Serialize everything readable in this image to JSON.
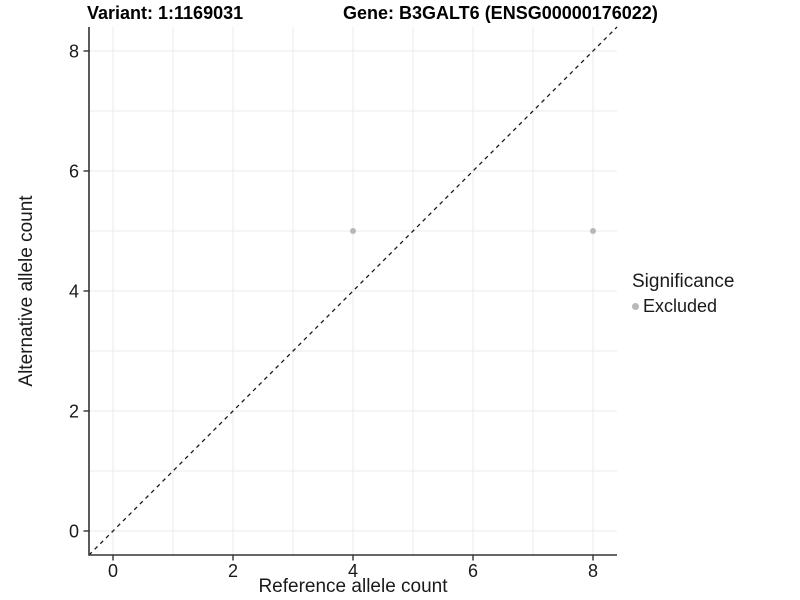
{
  "chart_data": {
    "type": "scatter",
    "titles": [
      "Variant: 1:1169031",
      "Gene: B3GALT6 (ENSG00000176022)"
    ],
    "xlabel": "Reference allele count",
    "ylabel": "Alternative allele count",
    "xlim": [
      -0.4,
      8.4
    ],
    "ylim": [
      -0.4,
      8.4
    ],
    "x_ticks": [
      0,
      2,
      4,
      6,
      8
    ],
    "y_ticks": [
      0,
      2,
      4,
      6,
      8
    ],
    "grid_values": [
      0,
      1,
      2,
      3,
      4,
      5,
      6,
      7,
      8
    ],
    "grid": "on",
    "legend_position": "right",
    "series": [
      {
        "name": "Excluded",
        "color": "#b8b8b8",
        "points": [
          {
            "x": 4,
            "y": 5
          },
          {
            "x": 8,
            "y": 5
          }
        ]
      }
    ],
    "reference_line": {
      "equation": "y = x",
      "style": "dashed",
      "color": "#1a1a1a"
    }
  },
  "legend": {
    "title": "Significance",
    "items": [
      {
        "label": "Excluded",
        "color": "#b8b8b8",
        "marker": "circle-icon"
      }
    ]
  },
  "colors": {
    "background": "#ffffff",
    "gridline": "#ebebeb",
    "axis": "#333333",
    "tick_label": "#1a1a1a",
    "point": "#b8b8b8"
  }
}
